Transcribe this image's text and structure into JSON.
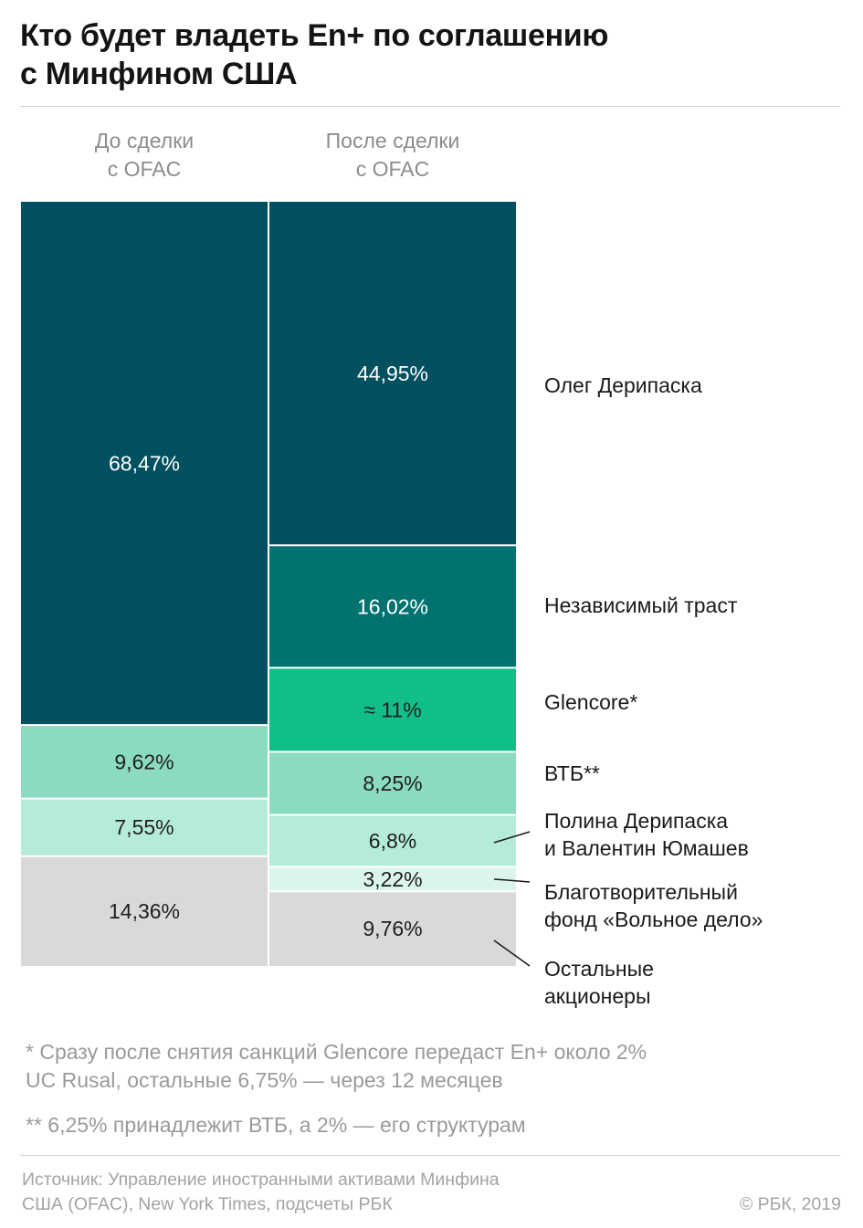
{
  "title": [
    "Кто будет владеть En+ по соглашению",
    "с Минфином США"
  ],
  "columns": [
    {
      "label": [
        "До сделки",
        "с OFAC"
      ]
    },
    {
      "label": [
        "После сделки",
        "с OFAC"
      ]
    }
  ],
  "legend": [
    {
      "lines": [
        "Олег Дерипаска"
      ]
    },
    {
      "lines": [
        "Независимый траст"
      ]
    },
    {
      "lines": [
        "Glencore*"
      ]
    },
    {
      "lines": [
        "ВТБ**"
      ]
    },
    {
      "lines": [
        "Полина Дерипаска",
        "и Валентин Юмашев"
      ]
    },
    {
      "lines": [
        "Благотворительный",
        "фонд «Вольное дело»"
      ]
    },
    {
      "lines": [
        "Остальные",
        "акционеры"
      ]
    }
  ],
  "chart_data": {
    "type": "bar",
    "stacked": true,
    "unit": "%",
    "categories": [
      "До сделки с OFAC",
      "После сделки с OFAC"
    ],
    "colors": {
      "deripaska": "#00505f",
      "trust": "#007371",
      "glencore": "#12be87",
      "vtb": "#8adbbf",
      "family": "#b5ebdb",
      "fund": "#dbf5ed",
      "others": "#d9d9d9",
      "label_light": "#ffffff",
      "label_dark": "#1f1f1f"
    },
    "stacks": [
      {
        "category": "До сделки с OFAC",
        "segments": [
          {
            "key": "deripaska",
            "value": 68.47,
            "label": "68,47%"
          },
          {
            "key": "vtb",
            "value": 9.62,
            "label": "9,62%"
          },
          {
            "key": "family",
            "value": 7.55,
            "label": "7,55%"
          },
          {
            "key": "others",
            "value": 14.36,
            "label": "14,36%"
          }
        ]
      },
      {
        "category": "После сделки с OFAC",
        "segments": [
          {
            "key": "deripaska",
            "value": 44.95,
            "label": "44,95%"
          },
          {
            "key": "trust",
            "value": 16.02,
            "label": "16,02%"
          },
          {
            "key": "glencore",
            "value": 11,
            "label": "≈ 11%"
          },
          {
            "key": "vtb",
            "value": 8.25,
            "label": "8,25%"
          },
          {
            "key": "family",
            "value": 6.8,
            "label": "6,8%"
          },
          {
            "key": "fund",
            "value": 3.22,
            "label": "3,22%"
          },
          {
            "key": "others",
            "value": 9.76,
            "label": "9,76%"
          }
        ]
      }
    ]
  },
  "notes": [
    [
      "* Сразу после снятия санкций Glencore передаст En+ около 2%",
      "UC Rusal, остальные 6,75% — через 12 месяцев"
    ],
    [
      "** 6,25% принадлежит ВТБ, а 2% — его структурам"
    ]
  ],
  "source": [
    "Источник: Управление иностранными активами Минфина",
    "США (OFAC),  New York Times, подсчеты РБК"
  ],
  "copyright": "© РБК, 2019"
}
